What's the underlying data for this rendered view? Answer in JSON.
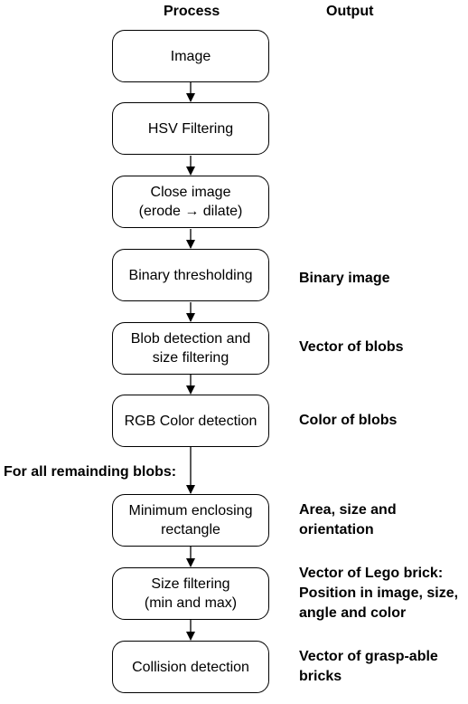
{
  "headers": {
    "process": "Process",
    "output": "Output"
  },
  "steps": [
    {
      "label": "Image",
      "output": ""
    },
    {
      "label": "HSV Filtering",
      "output": ""
    },
    {
      "label": "Close image\n(erode → dilate)",
      "output": ""
    },
    {
      "label": "Binary thresholding",
      "output": "Binary image"
    },
    {
      "label": "Blob detection and\nsize filtering",
      "output": "Vector of blobs"
    },
    {
      "label": "RGB Color detection",
      "output": "Color of blobs"
    },
    {
      "label": "Minimum enclosing\nrectangle",
      "output": "Area, size and\norientation"
    },
    {
      "label": "Size filtering\n(min and max)",
      "output": "Vector of Lego brick:\nPosition in image, size,\nangle and color"
    },
    {
      "label": "Collision detection",
      "output": "Vector of grasp-able\nbricks"
    }
  ],
  "loop_label": "For all remainding blobs:"
}
